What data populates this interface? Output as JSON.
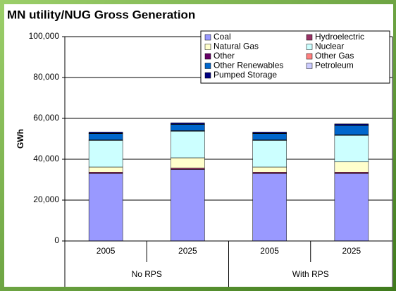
{
  "chart_data": {
    "type": "stacked_bar",
    "title": "MN utility/NUG Gross Generation",
    "y_label": "GWh",
    "categories": [
      "2005",
      "2025",
      "2005",
      "2025"
    ],
    "groups": [
      "No RPS",
      "With RPS"
    ],
    "series": [
      {
        "name": "Coal",
        "color": "#9999ff",
        "values": [
          33000,
          35000,
          33000,
          33000
        ]
      },
      {
        "name": "Hydroelectric",
        "color": "#993366",
        "values": [
          700,
          700,
          700,
          700
        ]
      },
      {
        "name": "Natural Gas",
        "color": "#ffffcc",
        "values": [
          2500,
          5000,
          2500,
          5000
        ]
      },
      {
        "name": "Nuclear",
        "color": "#ccffff",
        "values": [
          13000,
          13000,
          13000,
          13000
        ]
      },
      {
        "name": "Other",
        "color": "#660066",
        "values": [
          100,
          100,
          100,
          100
        ]
      },
      {
        "name": "Other Gas",
        "color": "#ff8080",
        "values": [
          200,
          200,
          200,
          200
        ]
      },
      {
        "name": "Other Renewables",
        "color": "#0066cc",
        "values": [
          3000,
          3000,
          3000,
          4500
        ]
      },
      {
        "name": "Petroleum",
        "color": "#ccccff",
        "values": [
          200,
          200,
          200,
          200
        ]
      },
      {
        "name": "Pumped Storage",
        "color": "#000080",
        "values": [
          600,
          600,
          600,
          600
        ]
      }
    ],
    "ylim": [
      0,
      100000
    ],
    "yticks": [
      0,
      {
        "value": 20000,
        "label": "20,000"
      },
      {
        "value": 40000,
        "label": "40,000"
      },
      {
        "value": 60000,
        "label": "60,000"
      },
      {
        "value": 80000,
        "label": "80,000"
      },
      {
        "value": 100000,
        "label": "100,000"
      }
    ],
    "grid": true
  }
}
